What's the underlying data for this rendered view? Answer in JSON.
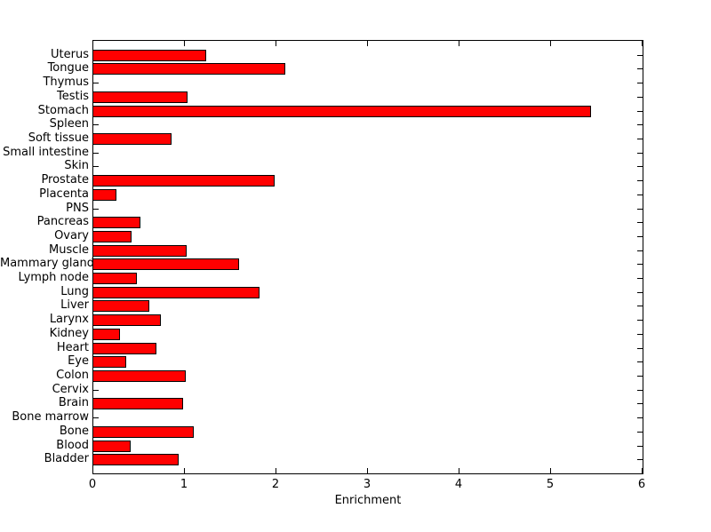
{
  "figure": {
    "background_color": "#ffffff",
    "axis_color": "#000000"
  },
  "chart_data": {
    "type": "bar",
    "orientation": "horizontal",
    "title": "",
    "xlabel": "Enrichment",
    "ylabel": "",
    "xlim": [
      0,
      6
    ],
    "xticks": [
      0,
      1,
      2,
      3,
      4,
      5,
      6
    ],
    "grid": false,
    "legend": null,
    "bar_color": "#ff0000",
    "bar_edge_color": "#000000",
    "categories": [
      "Uterus",
      "Tongue",
      "Thymus",
      "Testis",
      "Stomach",
      "Spleen",
      "Soft tissue",
      "Small intestine",
      "Skin",
      "Prostate",
      "Placenta",
      "PNS",
      "Pancreas",
      "Ovary",
      "Muscle",
      "Mammary gland",
      "Lymph node",
      "Lung",
      "Liver",
      "Larynx",
      "Kidney",
      "Heart",
      "Eye",
      "Colon",
      "Cervix",
      "Brain",
      "Bone marrow",
      "Bone",
      "Blood",
      "Bladder"
    ],
    "values": [
      1.23,
      2.1,
      0,
      1.03,
      5.44,
      0,
      0.85,
      0,
      0,
      1.98,
      0.25,
      0,
      0.51,
      0.42,
      1.02,
      1.59,
      0.48,
      1.82,
      0.61,
      0.74,
      0.29,
      0.69,
      0.36,
      1.01,
      0,
      0.98,
      0,
      1.1,
      0.41,
      0.93
    ]
  }
}
